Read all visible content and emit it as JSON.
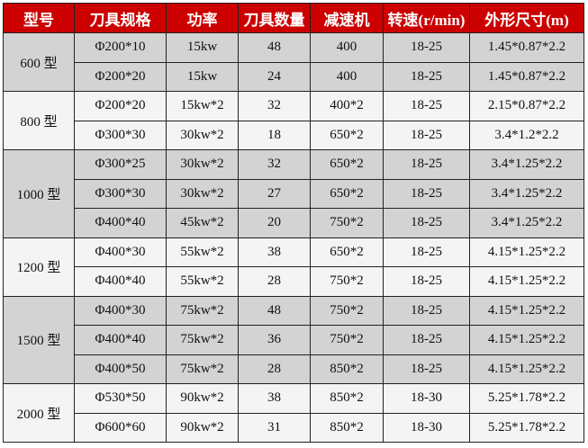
{
  "colors": {
    "header_bg": "#cc0000",
    "header_text": "#ffffff",
    "group_gray": "#d3d3d3",
    "group_white": "#f4f4f4"
  },
  "headers": [
    "型号",
    "刀具规格",
    "功率",
    "刀具数量",
    "减速机",
    "转速(r/min)",
    "外形尺寸(m)"
  ],
  "groups": [
    {
      "model": "600 型",
      "rows": [
        [
          "Φ200*10",
          "15kw",
          "48",
          "400",
          "18-25",
          "1.45*0.87*2.2"
        ],
        [
          "Φ200*20",
          "15kw",
          "24",
          "400",
          "18-25",
          "1.45*0.87*2.2"
        ]
      ]
    },
    {
      "model": "800 型",
      "rows": [
        [
          "Φ200*20",
          "15kw*2",
          "32",
          "400*2",
          "18-25",
          "2.15*0.87*2.2"
        ],
        [
          "Φ300*30",
          "30kw*2",
          "18",
          "650*2",
          "18-25",
          "3.4*1.2*2.2"
        ]
      ]
    },
    {
      "model": "1000 型",
      "rows": [
        [
          "Φ300*25",
          "30kw*2",
          "32",
          "650*2",
          "18-25",
          "3.4*1.25*2.2"
        ],
        [
          "Φ300*30",
          "30kw*2",
          "27",
          "650*2",
          "18-25",
          "3.4*1.25*2.2"
        ],
        [
          "Φ400*40",
          "45kw*2",
          "20",
          "750*2",
          "18-25",
          "3.4*1.25*2.2"
        ]
      ]
    },
    {
      "model": "1200 型",
      "rows": [
        [
          "Φ400*30",
          "55kw*2",
          "38",
          "650*2",
          "18-25",
          "4.15*1.25*2.2"
        ],
        [
          "Φ400*40",
          "55kw*2",
          "28",
          "750*2",
          "18-25",
          "4.15*1.25*2.2"
        ]
      ]
    },
    {
      "model": "1500 型",
      "rows": [
        [
          "Φ400*30",
          "75kw*2",
          "48",
          "750*2",
          "18-25",
          "4.15*1.25*2.2"
        ],
        [
          "Φ400*40",
          "75kw*2",
          "36",
          "750*2",
          "18-25",
          "4.15*1.25*2.2"
        ],
        [
          "Φ400*50",
          "75kw*2",
          "28",
          "850*2",
          "18-25",
          "4.15*1.25*2.2"
        ]
      ]
    },
    {
      "model": "2000 型",
      "rows": [
        [
          "Φ530*50",
          "90kw*2",
          "38",
          "850*2",
          "18-30",
          "5.25*1.78*2.2"
        ],
        [
          "Φ600*60",
          "90kw*2",
          "31",
          "850*2",
          "18-30",
          "5.25*1.78*2.2"
        ]
      ]
    }
  ]
}
